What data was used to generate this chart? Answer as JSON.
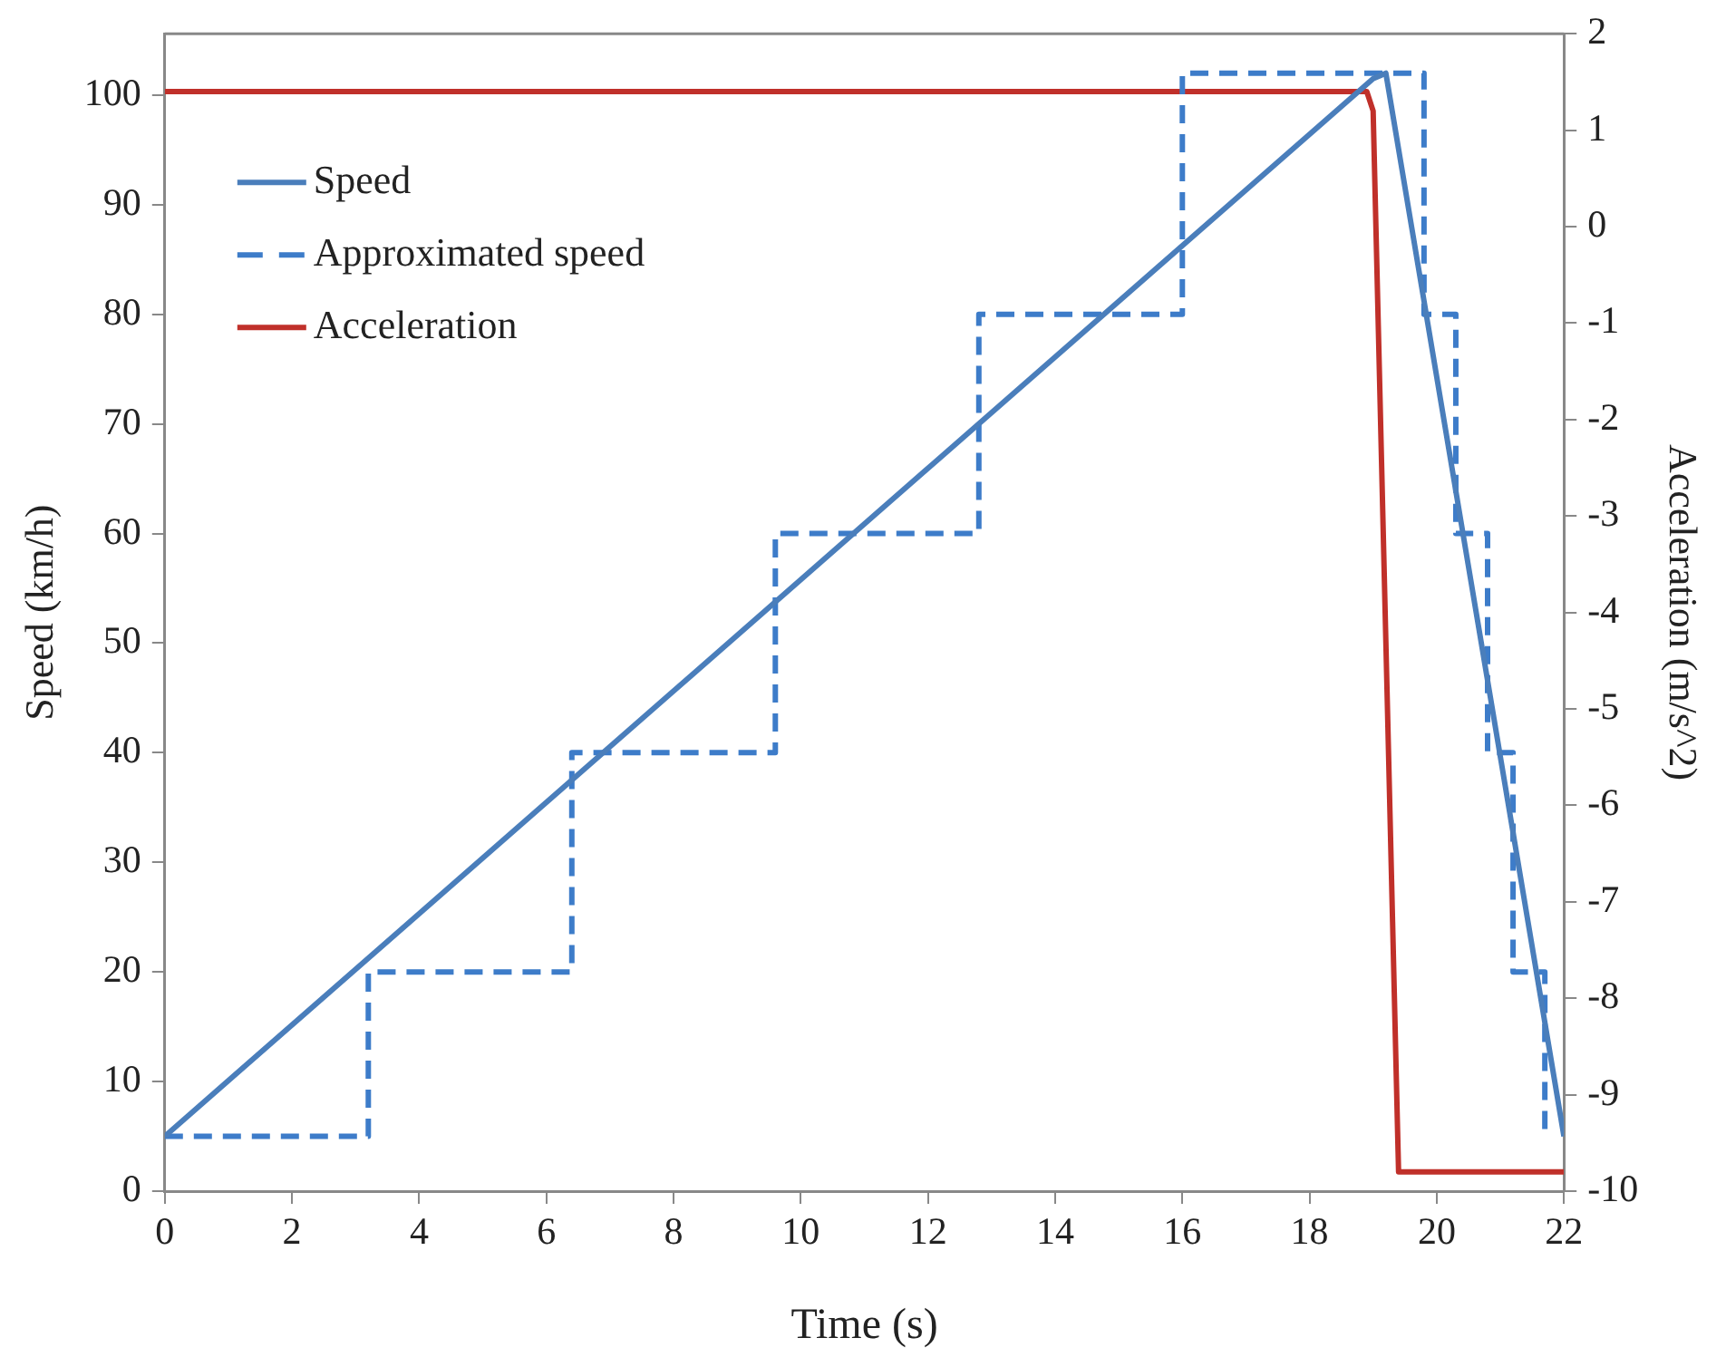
{
  "chart_data": {
    "type": "line",
    "xlabel": "Time (s)",
    "ylabel": "Speed (km/h)",
    "y2label": "Acceleration (m/s^2)",
    "xlim": [
      0,
      22
    ],
    "xticks": [
      0,
      2,
      4,
      6,
      8,
      10,
      12,
      14,
      16,
      18,
      20,
      22
    ],
    "ylim": [
      0,
      105.6
    ],
    "yticks": [
      0,
      10,
      20,
      30,
      40,
      50,
      60,
      70,
      80,
      90,
      100
    ],
    "y2lim": [
      -10,
      2
    ],
    "y2ticks": [
      -10,
      -9,
      -8,
      -7,
      -6,
      -5,
      -4,
      -3,
      -2,
      -1,
      0,
      1,
      2
    ],
    "grid": false,
    "legend": "top left",
    "marker": "none",
    "series": [
      {
        "name": "Speed",
        "type": "line",
        "color": "#4a7ebb",
        "line_style": "solid",
        "x": [
          0,
          19,
          19.2,
          22
        ],
        "values": [
          5,
          101.5,
          102,
          5
        ]
      },
      {
        "name": "Approximated speed",
        "type": "step",
        "color": "#3d7cc9",
        "line_style": "dashed",
        "x": [
          0,
          3.2,
          6.4,
          9.6,
          12.8,
          16,
          19.8,
          20.3,
          20.8,
          21.2,
          21.7
        ],
        "values": [
          5,
          20,
          40,
          60,
          80,
          102,
          80,
          60,
          40,
          20,
          5
        ]
      },
      {
        "name": "Acceleration",
        "type": "line",
        "color": "#c0302a",
        "line_style": "solid",
        "axis": "y2",
        "x": [
          0,
          18.9,
          19.0,
          19.4,
          22
        ],
        "values": [
          1.4,
          1.4,
          1.2,
          -9.8,
          -9.8
        ]
      }
    ]
  }
}
